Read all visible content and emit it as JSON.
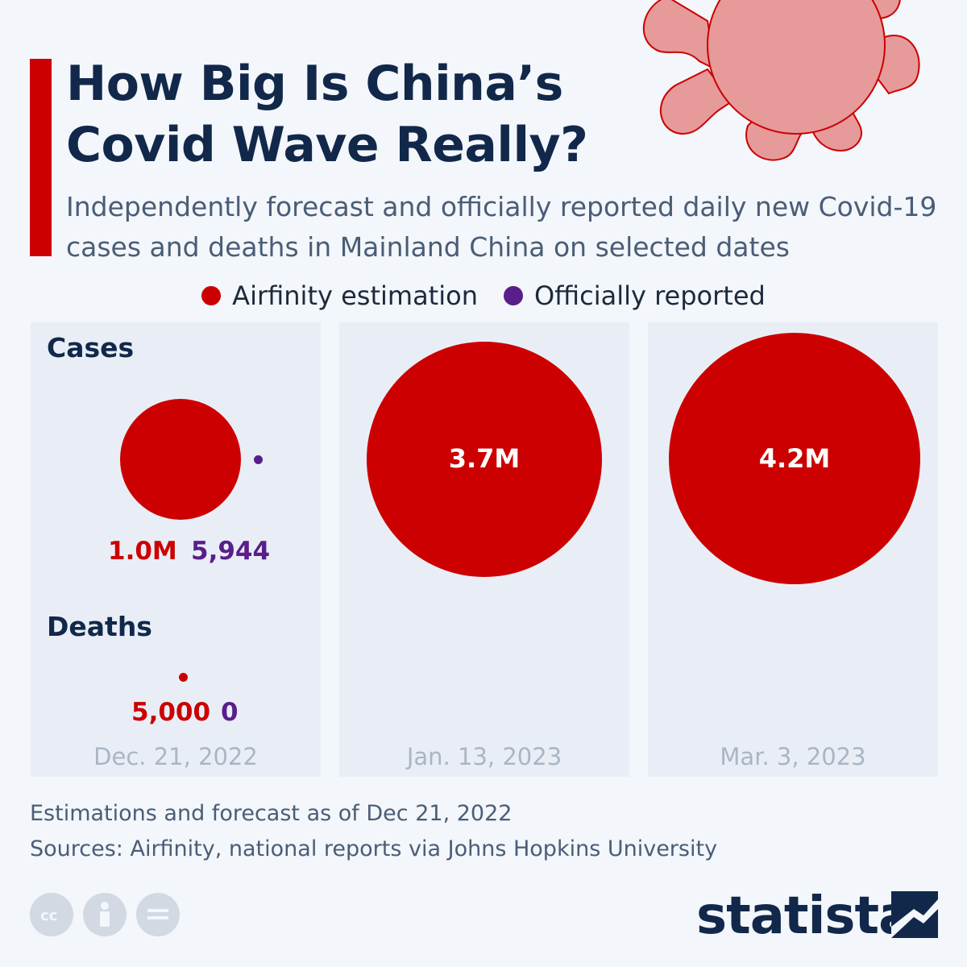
{
  "header": {
    "title": "How Big Is China’s Covid Wave Really?",
    "subtitle": "Independently forecast and officially reported daily new Covid-19 cases and deaths in Mainland China on selected dates"
  },
  "legend": [
    {
      "label": "Airfinity estimation",
      "color": "#cc0000"
    },
    {
      "label": "Officially reported",
      "color": "#5a1e8a"
    }
  ],
  "sections": {
    "cases": "Cases",
    "deaths": "Deaths"
  },
  "chart_data": {
    "type": "bubble",
    "title": "How Big Is China’s Covid Wave Really?",
    "categories": [
      "Dec. 21, 2022",
      "Jan. 13, 2023",
      "Mar. 3, 2023"
    ],
    "series": [
      {
        "name": "Airfinity estimation",
        "metric": "Cases",
        "values": [
          1000000,
          3700000,
          4200000
        ],
        "labels": [
          "1.0M",
          "3.7M",
          "4.2M"
        ]
      },
      {
        "name": "Officially reported",
        "metric": "Cases",
        "values": [
          5944,
          null,
          null
        ],
        "labels": [
          "5,944",
          "",
          ""
        ]
      },
      {
        "name": "Airfinity estimation",
        "metric": "Deaths",
        "values": [
          5000,
          null,
          null
        ],
        "labels": [
          "5,000",
          "",
          ""
        ]
      },
      {
        "name": "Officially reported",
        "metric": "Deaths",
        "values": [
          0,
          null,
          null
        ],
        "labels": [
          "0",
          "",
          ""
        ]
      }
    ]
  },
  "footer": {
    "note": "Estimations and forecast as of Dec 21, 2022",
    "sources": "Sources: Airfinity, national reports via Johns Hopkins University",
    "brand": "statista",
    "license_icons": [
      "cc-icon",
      "attribution-icon",
      "no-derivatives-icon"
    ]
  }
}
